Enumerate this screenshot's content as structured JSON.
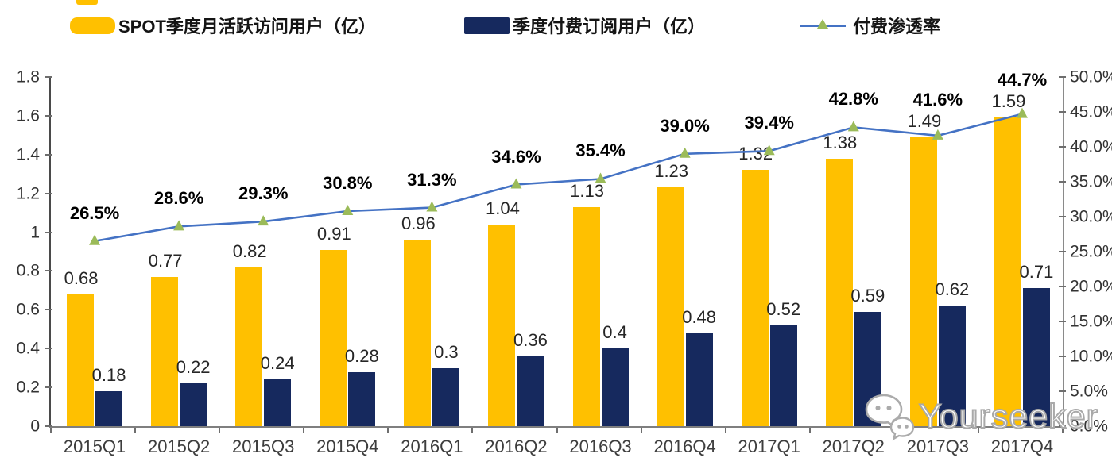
{
  "legend": {
    "items": [
      {
        "label": "SPOT季度月活跃访问用户（亿）",
        "swatch_color": "#FFC000",
        "type": "bar"
      },
      {
        "label": "季度付费订阅用户（亿）",
        "swatch_color": "#16295E",
        "type": "bar"
      },
      {
        "label": "付费渗透率",
        "swatch_color": "#4472C4",
        "marker_color": "#9BBB59",
        "type": "line"
      }
    ]
  },
  "chart_data": {
    "type": "combo-bar-line",
    "title": "",
    "categories": [
      "2015Q1",
      "2015Q2",
      "2015Q3",
      "2015Q4",
      "2016Q1",
      "2016Q2",
      "2016Q3",
      "2016Q4",
      "2017Q1",
      "2017Q2",
      "2017Q3",
      "2017Q4"
    ],
    "series": [
      {
        "name": "SPOT季度月活跃访问用户（亿）",
        "type": "bar",
        "axis": "left",
        "color": "#FFC000",
        "values": [
          0.68,
          0.77,
          0.82,
          0.91,
          0.96,
          1.04,
          1.13,
          1.23,
          1.32,
          1.38,
          1.49,
          1.59
        ]
      },
      {
        "name": "季度付费订阅用户（亿）",
        "type": "bar",
        "axis": "left",
        "color": "#16295E",
        "values": [
          0.18,
          0.22,
          0.24,
          0.28,
          0.3,
          0.36,
          0.4,
          0.48,
          0.52,
          0.59,
          0.62,
          0.71
        ]
      },
      {
        "name": "付费渗透率",
        "type": "line",
        "axis": "right",
        "color": "#4472C4",
        "marker": "triangle",
        "marker_color": "#9BBB59",
        "unit": "%",
        "values": [
          26.5,
          28.6,
          29.3,
          30.8,
          31.3,
          34.6,
          35.4,
          39.0,
          39.4,
          42.8,
          41.6,
          44.7
        ]
      }
    ],
    "left_axis": {
      "min": 0,
      "max": 1.8,
      "tick_labels": [
        "0",
        "0.2",
        "0.4",
        "0.6",
        "0.8",
        "1",
        "1.2",
        "1.4",
        "1.6",
        "1.8"
      ]
    },
    "right_axis": {
      "min": 0,
      "max": 50,
      "tick_labels": [
        "0.0%",
        "5.0%",
        "10.0%",
        "15.0%",
        "20.0%",
        "25.0%",
        "30.0%",
        "35.0%",
        "40.0%",
        "45.0%",
        "50.0%"
      ]
    },
    "grid": false,
    "legend_position": "top"
  },
  "watermark": {
    "text": "Yourseeker",
    "icon": "wechat-icon"
  }
}
